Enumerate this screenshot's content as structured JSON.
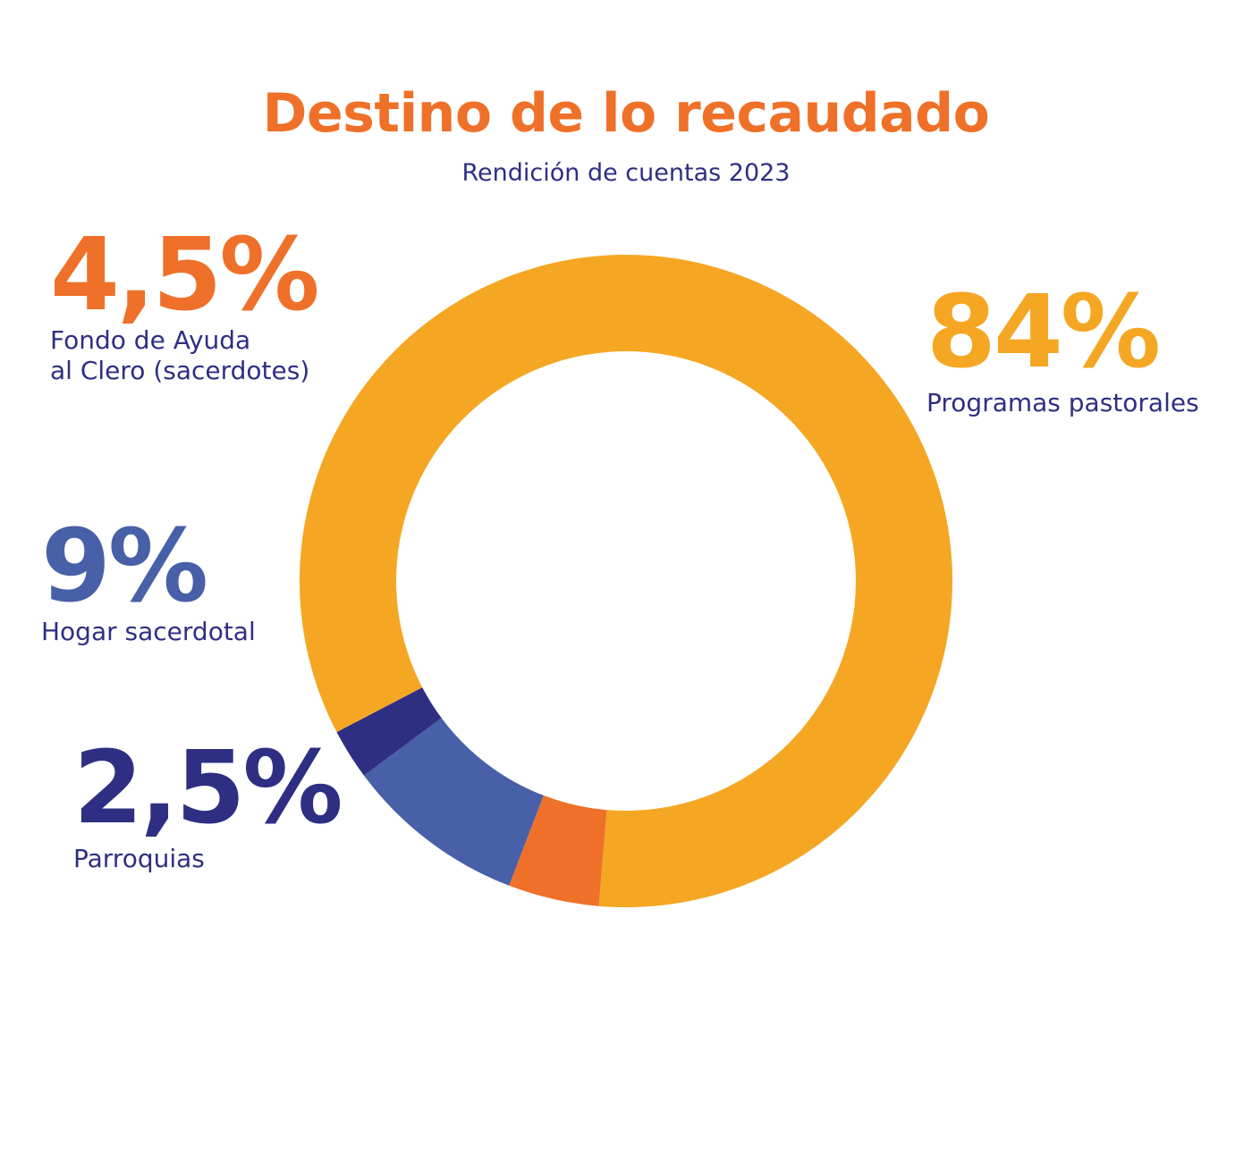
{
  "chart_data": {
    "type": "pie",
    "title": "Destino de lo recaudado",
    "subtitle": "Rendición de cuentas 2023",
    "donut": true,
    "slices": [
      {
        "label": "Programas pastorales",
        "value": 84,
        "display": "84%",
        "color": "#f5a623"
      },
      {
        "label_lines": [
          "Fondo de Ayuda",
          "al Clero (sacerdotes)"
        ],
        "label": "Fondo de Ayuda al Clero (sacerdotes)",
        "value": 4.5,
        "display": "4,5%",
        "color": "#ef7029"
      },
      {
        "label": "Hogar sacerdotal",
        "value": 9,
        "display": "9%",
        "color": "#4860a8"
      },
      {
        "label": "Parroquias",
        "value": 2.5,
        "display": "2,5%",
        "color": "#2e2f83"
      }
    ]
  }
}
